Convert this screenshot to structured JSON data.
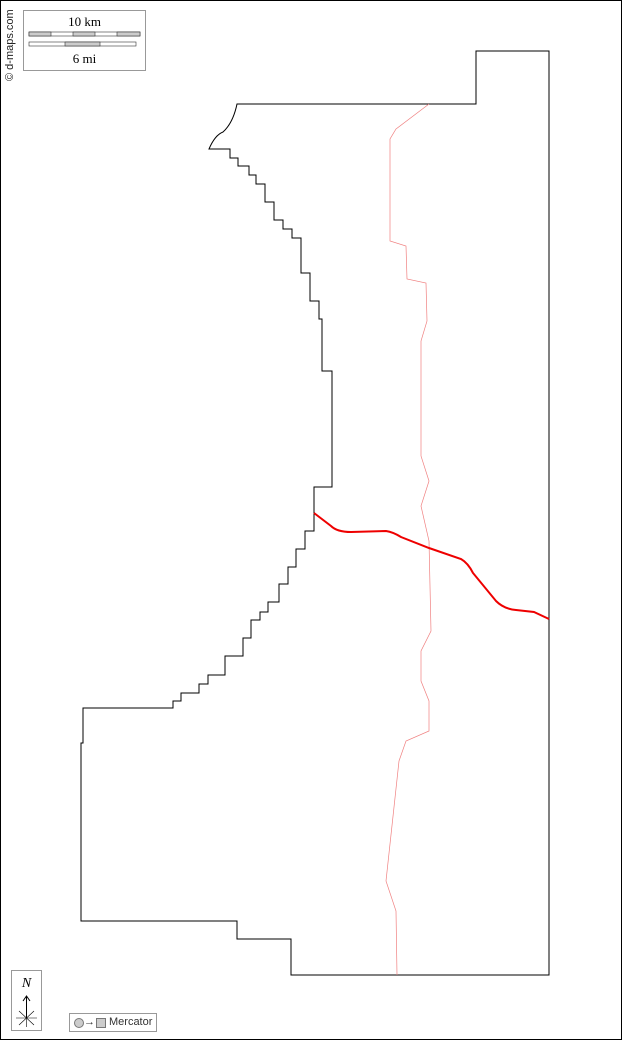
{
  "credit": "© d-maps.com",
  "scale_bar": {
    "km_label": "10 km",
    "mi_label": "6 mi"
  },
  "north_arrow": {
    "label": "N"
  },
  "projection": {
    "label": "Mercator",
    "arrow": "→"
  },
  "colors": {
    "boundary": "#000000",
    "road": "#ee0000",
    "river": "#f08080"
  }
}
